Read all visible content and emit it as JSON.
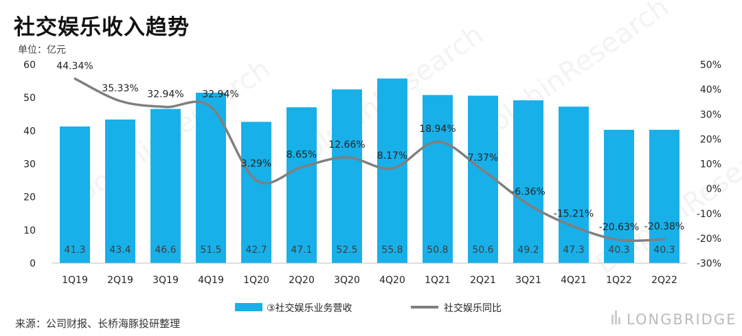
{
  "chart_data": {
    "type": "bar",
    "title": "社交娱乐收入趋势",
    "unit_label": "单位：亿元",
    "categories": [
      "1Q19",
      "2Q19",
      "3Q19",
      "4Q19",
      "1Q20",
      "2Q20",
      "3Q20",
      "4Q20",
      "1Q21",
      "2Q21",
      "3Q21",
      "4Q21",
      "1Q22",
      "2Q22"
    ],
    "series": [
      {
        "name": "③社交娱乐业务营收",
        "type": "bar",
        "axis": "left",
        "values": [
          41.3,
          43.4,
          46.6,
          51.5,
          42.7,
          47.1,
          52.5,
          55.8,
          50.8,
          50.6,
          49.2,
          47.3,
          40.3,
          40.3
        ],
        "labels": [
          "41.3",
          "43.4",
          "46.6",
          "51.5",
          "42.7",
          "47.1",
          "52.5",
          "55.8",
          "50.8",
          "50.6",
          "49.2",
          "47.3",
          "40.3",
          "40.3"
        ],
        "color": "#18B0E8"
      },
      {
        "name": "社交娱乐同比",
        "type": "line",
        "axis": "right",
        "values": [
          44.34,
          35.33,
          32.94,
          32.94,
          3.29,
          8.65,
          12.66,
          8.17,
          18.94,
          7.37,
          -6.36,
          -15.21,
          -20.63,
          -20.38
        ],
        "labels": [
          "44.34%",
          "35.33%",
          "32.94%",
          "32.94%",
          "3.29%",
          "8.65%",
          "12.66%",
          "8.17%",
          "18.94%",
          "7.37%",
          "-6.36%",
          "-15.21%",
          "-20.63%",
          "-20.38%"
        ],
        "color": "#7F7F7F"
      }
    ],
    "y_left": {
      "min": 0,
      "max": 60,
      "ticks": [
        "0",
        "10",
        "20",
        "30",
        "40",
        "50",
        "60"
      ]
    },
    "y_right": {
      "min": -30,
      "max": 50,
      "ticks": [
        "-30%",
        "-20%",
        "-10%",
        "0%",
        "10%",
        "20%",
        "30%",
        "40%",
        "50%"
      ]
    },
    "legend_position": "bottom-center",
    "grid": false
  },
  "source": "来源：公司财报、长桥海豚投研整理",
  "watermark": {
    "text": "DolphinResearch",
    "subtext": "LONGBRIDGE",
    "brand": "LONGBRIDGE"
  }
}
